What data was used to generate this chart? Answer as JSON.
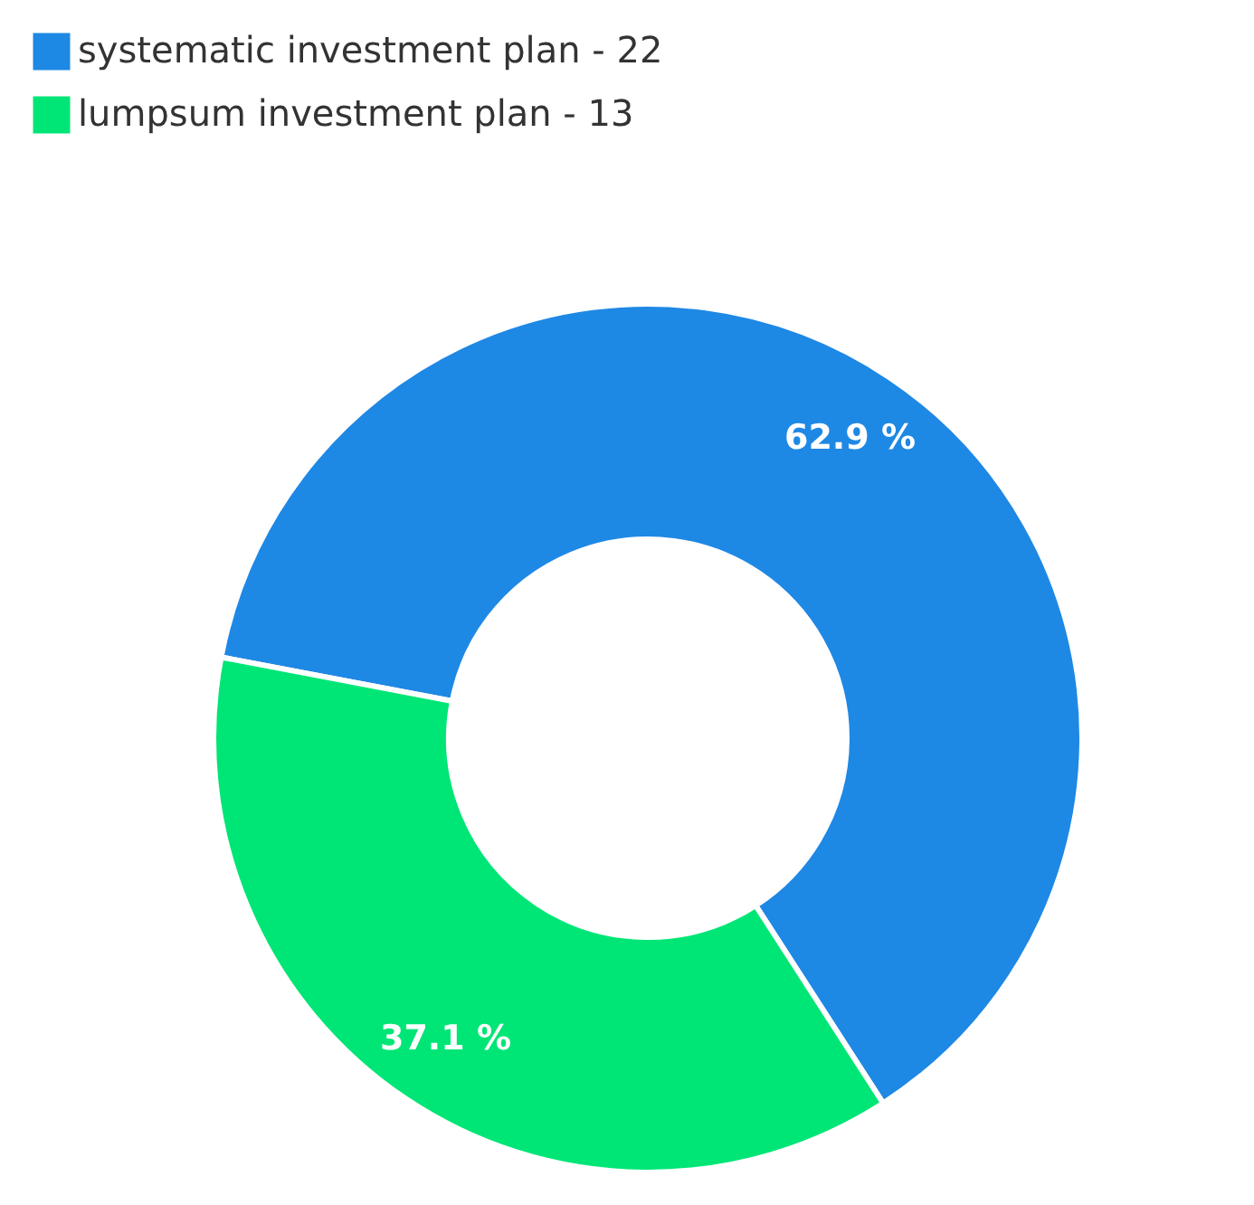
{
  "chart_data": {
    "type": "donut",
    "categories": [
      "systematic investment plan - 22",
      "lumpsum investment plan - 13"
    ],
    "values": [
      62.9,
      37.1
    ],
    "colors": [
      "#1e88e5",
      "#00e676"
    ],
    "value_labels": [
      "62.9 %",
      "37.1 %"
    ],
    "legend": "top left"
  }
}
